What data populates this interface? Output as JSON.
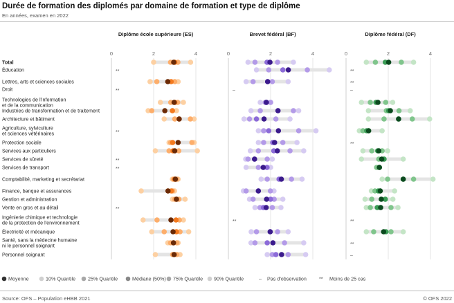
{
  "title": "Durée de formation des diplomés par domaine de formation et type de diplôme",
  "subtitle": "En années, examen en 2022",
  "source": "Source: OFS – Population eHBB 2021",
  "copyright": "© OFS 2022",
  "chart_data": {
    "type": "scatter",
    "title": "Durée de formation des diplomés par domaine de formation et type de diplôme",
    "unit": "années",
    "xlim": [
      0,
      4.2
    ],
    "ticks": [
      "0",
      "2",
      "4"
    ],
    "panels": [
      {
        "key": "es",
        "title": "Diplôme école supérieure (ES)",
        "colors": {
          "mean": "#6b2a06",
          "p10": "#fdd0a2",
          "p25": "#fdae6b",
          "median": "#f47a1f",
          "p75": "#fdae6b",
          "p90": "#fdd0a2"
        }
      },
      {
        "key": "bf",
        "title": "Brevet fédéral (BF)",
        "colors": {
          "mean": "#3b1a8c",
          "p10": "#d6cbf2",
          "p25": "#b39ae8",
          "median": "#8c6bd8",
          "p75": "#b39ae8",
          "p90": "#d6cbf2"
        }
      },
      {
        "key": "df",
        "title": "Diplôme fédéral (DF)",
        "colors": {
          "mean": "#0b4a1e",
          "p10": "#c4e5c6",
          "p25": "#80c58c",
          "median": "#3b9c56",
          "p75": "#80c58c",
          "p90": "#c4e5c6"
        }
      }
    ],
    "legend": {
      "items": [
        {
          "label": "Moyenne",
          "color": "#333333"
        },
        {
          "label": "10% Quantile",
          "color": "#d0d0d0"
        },
        {
          "label": "25% Quantile",
          "color": "#a8a8a8"
        },
        {
          "label": "Médiane (50%)",
          "color": "#888888"
        },
        {
          "label": "75% Quantile",
          "color": "#a8a8a8"
        },
        {
          "label": "90% Quantile",
          "color": "#d0d0d0"
        }
      ],
      "no_obs_symbol": "–",
      "no_obs_label": "Pas d'observation",
      "few_symbol": "**",
      "few_label": "Moins de 25 cas"
    },
    "rows": [
      {
        "label": [
          "Total"
        ],
        "bold": true,
        "es": {
          "p10": 2.0,
          "p25": 2.8,
          "median": 3.0,
          "p75": 3.15,
          "p90": 3.75,
          "mean": 2.95
        },
        "bf": {
          "p10": 0.93,
          "p25": 1.26,
          "median": 1.83,
          "p75": 2.33,
          "p90": 3.08,
          "mean": 1.97
        },
        "df": {
          "p10": 0.96,
          "p25": 1.39,
          "median": 1.86,
          "p75": 2.62,
          "p90": 3.2,
          "mean": 2.02
        }
      },
      {
        "label": [
          "Éducation"
        ],
        "es": "**",
        "bf": {
          "p10": 1.33,
          "p25": 1.91,
          "median": 2.58,
          "p75": 3.74,
          "p90": 4.78,
          "mean": 2.84
        },
        "df": "**"
      },
      {
        "label": [
          "Lettres, arts et sciences sociales"
        ],
        "es": {
          "p10": 1.83,
          "p25": 2.15,
          "median": 2.83,
          "p75": 3.0,
          "p90": 3.16,
          "mean": 2.67
        },
        "bf": {
          "p10": 0.84,
          "p25": 1.17,
          "median": 1.86,
          "p75": 2.08,
          "p90": 2.83,
          "mean": 1.86
        },
        "df": "**"
      },
      {
        "label": [
          "Droit"
        ],
        "es": "**",
        "bf": "–",
        "df": "–"
      },
      {
        "label": [
          "Technologies de l'information",
          "et de la communication"
        ],
        "es": {
          "p10": 2.32,
          "p25": 2.81,
          "median": 3.0,
          "p75": 3.14,
          "p90": 3.41,
          "mean": 2.97
        },
        "bf": {
          "p10": 1.51,
          "p25": 1.75,
          "median": 1.8,
          "p75": 2.0,
          "p90": 2.0,
          "mean": 1.8
        },
        "df": {
          "p10": 0.73,
          "p25": 1.15,
          "median": 1.42,
          "p75": 1.88,
          "p90": 2.21,
          "mean": 1.51
        }
      },
      {
        "label": [
          "Industries de transformation et de traitement"
        ],
        "es": {
          "p10": 1.74,
          "p25": 1.91,
          "median": 2.89,
          "p75": 2.89,
          "p90": 3.08,
          "mean": 2.53
        },
        "bf": {
          "p10": 1.07,
          "p25": 1.51,
          "median": 2.35,
          "p75": 3.08,
          "p90": 3.33,
          "mean": 2.35
        },
        "df": {
          "p10": 1.06,
          "p25": 1.91,
          "median": 2.02,
          "p75": 2.51,
          "p90": 3.04,
          "mean": 2.1
        }
      },
      {
        "label": [
          "Architecture et bâtiment"
        ],
        "es": {
          "p10": 2.5,
          "p25": 3.0,
          "median": 3.21,
          "p75": 3.74,
          "p90": 3.92,
          "mean": 3.21
        },
        "bf": {
          "p10": 0.74,
          "p25": 1.0,
          "median": 1.33,
          "p75": 2.25,
          "p90": 2.92,
          "mean": 1.69
        },
        "df": {
          "p10": 1.06,
          "p25": 1.8,
          "median": 2.49,
          "p75": 3.14,
          "p90": 3.96,
          "mean": 2.49
        }
      },
      {
        "label": [
          "Agriculture, sylviculture",
          "et sciences vétérinaires"
        ],
        "es": "**",
        "bf": {
          "p10": 1.42,
          "p25": 1.67,
          "median": 1.91,
          "p75": 3.33,
          "p90": 4.15,
          "mean": 2.37
        },
        "df": {
          "p10": 0.63,
          "p25": 0.8,
          "median": 0.98,
          "p75": 1.07,
          "p90": 1.71,
          "mean": 1.07
        }
      },
      {
        "label": [
          "Protection sociale"
        ],
        "es": {
          "p10": 2.73,
          "p25": 2.81,
          "median": 2.9,
          "p75": 3.81,
          "p90": 3.92,
          "mean": 3.16
        },
        "bf": {
          "p10": 1.42,
          "p25": 1.67,
          "median": 2.1,
          "p75": 2.58,
          "p90": 3.25,
          "mean": 2.19
        },
        "df": "**"
      },
      {
        "label": [
          "Services aux particuliers"
        ],
        "es": {
          "p10": 2.08,
          "p25": 2.73,
          "median": 2.92,
          "p75": 3.19,
          "p90": 4.07,
          "mean": 3.0
        },
        "bf": {
          "p10": 1.04,
          "p25": 1.42,
          "median": 2.15,
          "p75": 2.92,
          "p90": 3.57,
          "mean": 2.32
        },
        "df": {
          "p10": 0.8,
          "p25": 1.22,
          "median": 1.5,
          "p75": 1.71,
          "p90": 1.97,
          "mean": 1.55
        }
      },
      {
        "label": [
          "Services de sûreté"
        ],
        "es": "**",
        "bf": {
          "p10": 0.82,
          "p25": 0.93,
          "median": 1.24,
          "p75": 1.84,
          "p90": 2.08,
          "mean": 1.24
        },
        "df": {
          "p10": 0.73,
          "p25": 1.55,
          "median": 1.8,
          "p75": 1.8,
          "p90": 2.71,
          "mean": 1.69
        }
      },
      {
        "label": [
          "Services de transport"
        ],
        "es": "**",
        "bf": {
          "p10": 0.84,
          "p25": 1.42,
          "median": 1.83,
          "p75": 1.83,
          "p90": 2.0,
          "mean": 1.65
        },
        "df": {
          "p10": 1.45,
          "p25": 1.45,
          "median": 1.58,
          "p75": 1.58,
          "p90": 1.58,
          "mean": 1.58
        }
      },
      {
        "label": [
          "Comptabilité, marketing et secrétariat"
        ],
        "es": {
          "p10": 2.89,
          "p25": 2.95,
          "median": 3.0,
          "p75": 3.1,
          "p90": 3.16,
          "mean": 3.03
        },
        "bf": {
          "p10": 1.55,
          "p25": 1.84,
          "median": 2.4,
          "p75": 2.99,
          "p90": 3.49,
          "mean": 2.51
        },
        "df": {
          "p10": 1.71,
          "p25": 1.97,
          "median": 2.71,
          "p75": 3.2,
          "p90": 4.12,
          "mean": 2.71
        }
      },
      {
        "label": [
          "Finance, banque et assurances"
        ],
        "es": {
          "p10": 1.41,
          "p25": 2.68,
          "median": 2.84,
          "p75": 2.9,
          "p90": 2.99,
          "mean": 2.68
        },
        "bf": {
          "p10": 0.71,
          "p25": 0.84,
          "median": 1.42,
          "p75": 1.99,
          "p90": 2.16,
          "mean": 1.42
        },
        "df": {
          "p10": 1.2,
          "p25": 1.37,
          "median": 1.53,
          "p75": 1.62,
          "p90": 2.3,
          "mean": 1.62
        }
      },
      {
        "label": [
          "Gestion et administration"
        ],
        "es": {
          "p10": 2.89,
          "p25": 3.0,
          "median": 3.08,
          "p75": 3.2,
          "p90": 3.49,
          "mean": 3.08
        },
        "bf": {
          "p10": 1.0,
          "p25": 1.17,
          "median": 2.0,
          "p75": 2.17,
          "p90": 2.58,
          "mean": 1.81
        },
        "df": {
          "p10": 0.9,
          "p25": 1.22,
          "median": 1.86,
          "p75": 1.86,
          "p90": 2.22,
          "mean": 1.67
        }
      },
      {
        "label": [
          "Vente en gros et au détail"
        ],
        "es": "**",
        "bf": {
          "p10": 1.26,
          "p25": 1.5,
          "median": 1.66,
          "p75": 2.08,
          "p90": 2.49,
          "mean": 1.79
        },
        "df": {
          "p10": 0.96,
          "p25": 1.15,
          "median": 1.48,
          "p75": 2.13,
          "p90": 2.46,
          "mean": 1.64
        }
      },
      {
        "label": [
          "Ingénierie chimique et technologie",
          "de la protection de l'environnement"
        ],
        "es": {
          "p10": 1.5,
          "p25": 2.16,
          "median": 3.06,
          "p75": 3.22,
          "p90": 3.41,
          "mean": 2.82
        },
        "bf": "**",
        "df": "**"
      },
      {
        "label": [
          "Électricité et mécanique"
        ],
        "es": {
          "p10": 1.91,
          "p25": 2.5,
          "median": 3.08,
          "p75": 3.25,
          "p90": 3.66,
          "mean": 2.92
        },
        "bf": {
          "p10": 1.08,
          "p25": 1.33,
          "median": 1.98,
          "p75": 2.33,
          "p90": 2.83,
          "mean": 1.98
        },
        "df": {
          "p10": 0.96,
          "p25": 1.31,
          "median": 1.89,
          "p75": 2.13,
          "p90": 2.71,
          "mean": 1.78
        }
      },
      {
        "label": [
          "Santé, sans la médecine humaine",
          "ni le personnel soignant"
        ],
        "es": {
          "p10": 2.67,
          "p25": 2.8,
          "median": 2.94,
          "p75": 3.1,
          "p90": 3.16,
          "mean": 2.94
        },
        "bf": {
          "p10": 1.07,
          "p25": 1.26,
          "median": 1.84,
          "p75": 2.66,
          "p90": 3.57,
          "mean": 2.11
        },
        "df": "**"
      },
      {
        "label": [
          "Personnel soignant"
        ],
        "es": {
          "p10": 2.08,
          "p25": 2.9,
          "median": 2.97,
          "p75": 3.1,
          "p90": 3.25,
          "mean": 2.97
        },
        "bf": {
          "p10": 1.84,
          "p25": 2.08,
          "median": 2.25,
          "p75": 2.83,
          "p90": 3.66,
          "mean": 2.52
        },
        "df": "–"
      }
    ]
  }
}
